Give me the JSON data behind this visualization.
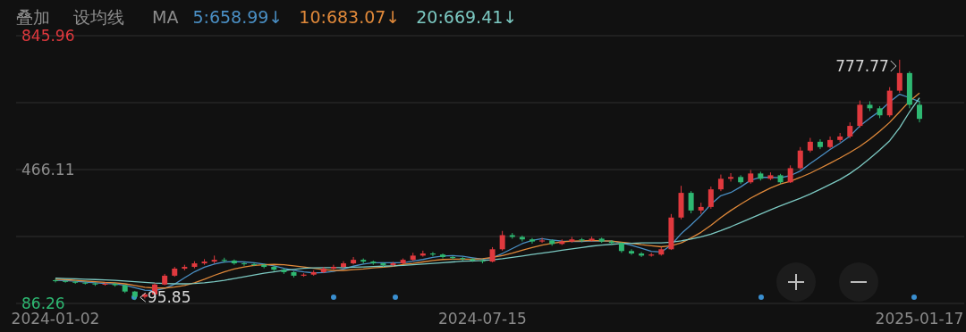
{
  "chart_data": {
    "type": "candlestick",
    "legend_title": "MA",
    "legend": "top left",
    "grid": "y",
    "ylim": [
      86.26,
      845.96
    ],
    "yticks": [
      86.26,
      {
        "value": 276.185,
        "label": null
      },
      466.11,
      {
        "value": 656.035,
        "label": null
      },
      845.96
    ],
    "annotations": [
      "叠加",
      "设均线",
      "777.77",
      "95.85"
    ],
    "categories": [
      "2024-01-02",
      null,
      null,
      null,
      null,
      null,
      null,
      null,
      null,
      null,
      null,
      null,
      null,
      null,
      null,
      null,
      null,
      null,
      null,
      null,
      null,
      null,
      null,
      null,
      null,
      null,
      null,
      null,
      null,
      null,
      null,
      null,
      null,
      null,
      null,
      null,
      null,
      null,
      null,
      null,
      null,
      null,
      null,
      "2024-07-15",
      null,
      null,
      null,
      null,
      null,
      null,
      null,
      null,
      null,
      null,
      null,
      null,
      null,
      null,
      null,
      null,
      null,
      null,
      null,
      null,
      null,
      null,
      null,
      null,
      null,
      null,
      null,
      null,
      null,
      null,
      null,
      null,
      null,
      null,
      null,
      null,
      null,
      null,
      null,
      null,
      null,
      null,
      null,
      "2025-01-17"
    ],
    "ohlc": [
      [
        152,
        156,
        146,
        150
      ],
      [
        150,
        153,
        145,
        148
      ],
      [
        148,
        151,
        142,
        145
      ],
      [
        145,
        149,
        140,
        143
      ],
      [
        143,
        146,
        136,
        140
      ],
      [
        140,
        146,
        137,
        142
      ],
      [
        142,
        145,
        134,
        138
      ],
      [
        138,
        140,
        116,
        120
      ],
      [
        120,
        122,
        95.85,
        105
      ],
      [
        105,
        116,
        100,
        112
      ],
      [
        112,
        144,
        110,
        140
      ],
      [
        140,
        170,
        138,
        165
      ],
      [
        165,
        190,
        162,
        185
      ],
      [
        185,
        196,
        180,
        190
      ],
      [
        190,
        206,
        186,
        200
      ],
      [
        200,
        212,
        196,
        205
      ],
      [
        205,
        222,
        200,
        210
      ],
      [
        210,
        216,
        202,
        208
      ],
      [
        208,
        211,
        196,
        200
      ],
      [
        200,
        204,
        193,
        198
      ],
      [
        198,
        202,
        192,
        196
      ],
      [
        196,
        199,
        186,
        190
      ],
      [
        190,
        193,
        178,
        182
      ],
      [
        182,
        186,
        170,
        175
      ],
      [
        175,
        178,
        160,
        165
      ],
      [
        165,
        172,
        162,
        168
      ],
      [
        168,
        180,
        165,
        175
      ],
      [
        175,
        190,
        172,
        185
      ],
      [
        185,
        196,
        182,
        190
      ],
      [
        190,
        206,
        187,
        200
      ],
      [
        200,
        218,
        197,
        210
      ],
      [
        210,
        214,
        200,
        205
      ],
      [
        205,
        208,
        196,
        200
      ],
      [
        200,
        203,
        190,
        195
      ],
      [
        195,
        204,
        192,
        200
      ],
      [
        200,
        214,
        198,
        210
      ],
      [
        210,
        230,
        207,
        222
      ],
      [
        222,
        236,
        219,
        228
      ],
      [
        228,
        232,
        220,
        225
      ],
      [
        225,
        228,
        214,
        218
      ],
      [
        218,
        221,
        211,
        215
      ],
      [
        215,
        218,
        208,
        212
      ],
      [
        212,
        215,
        204,
        208
      ],
      [
        208,
        212,
        200,
        205
      ],
      [
        205,
        246,
        203,
        240
      ],
      [
        240,
        292,
        236,
        280
      ],
      [
        280,
        286,
        270,
        275
      ],
      [
        275,
        279,
        262,
        268
      ],
      [
        268,
        272,
        256,
        262
      ],
      [
        262,
        272,
        258,
        265
      ],
      [
        265,
        268,
        250,
        255
      ],
      [
        255,
        268,
        252,
        262
      ],
      [
        262,
        275,
        259,
        268
      ],
      [
        268,
        272,
        260,
        265
      ],
      [
        265,
        276,
        262,
        270
      ],
      [
        270,
        273,
        258,
        262
      ],
      [
        262,
        266,
        252,
        258
      ],
      [
        258,
        260,
        230,
        235
      ],
      [
        235,
        240,
        224,
        228
      ],
      [
        228,
        232,
        218,
        222
      ],
      [
        222,
        230,
        219,
        225
      ],
      [
        225,
        246,
        222,
        240
      ],
      [
        240,
        340,
        238,
        330
      ],
      [
        330,
        420,
        325,
        400
      ],
      [
        400,
        405,
        342,
        350
      ],
      [
        350,
        372,
        340,
        360
      ],
      [
        360,
        418,
        355,
        410
      ],
      [
        410,
        452,
        405,
        440
      ],
      [
        440,
        456,
        432,
        445
      ],
      [
        445,
        450,
        425,
        430
      ],
      [
        430,
        465,
        426,
        455
      ],
      [
        455,
        460,
        435,
        440
      ],
      [
        440,
        458,
        436,
        450
      ],
      [
        450,
        454,
        425,
        430
      ],
      [
        430,
        478,
        428,
        470
      ],
      [
        470,
        530,
        466,
        520
      ],
      [
        520,
        556,
        515,
        545
      ],
      [
        545,
        552,
        524,
        530
      ],
      [
        530,
        560,
        526,
        550
      ],
      [
        550,
        570,
        544,
        560
      ],
      [
        560,
        600,
        555,
        590
      ],
      [
        590,
        662,
        585,
        650
      ],
      [
        650,
        660,
        632,
        640
      ],
      [
        640,
        646,
        612,
        620
      ],
      [
        620,
        700,
        615,
        690
      ],
      [
        690,
        777.77,
        684,
        740
      ],
      [
        740,
        745,
        640,
        650
      ],
      [
        650,
        662,
        600,
        610
      ]
    ],
    "series": [
      {
        "name": "5:658.99↓",
        "type": "line",
        "color": "#4a8fc4",
        "values": [
          152,
          151,
          149,
          147,
          145,
          143,
          142,
          138,
          131,
          124,
          123,
          129,
          141,
          159,
          176,
          189,
          198,
          204,
          205,
          204,
          202,
          198,
          193,
          186,
          180,
          176,
          173,
          174,
          177,
          184,
          192,
          198,
          202,
          202,
          202,
          202,
          206,
          211,
          217,
          221,
          222,
          220,
          216,
          212,
          216,
          228,
          242,
          256,
          265,
          270,
          266,
          263,
          262,
          262,
          264,
          263,
          263,
          258,
          251,
          243,
          234,
          232,
          252,
          284,
          309,
          336,
          368,
          392,
          401,
          417,
          436,
          444,
          444,
          443,
          449,
          462,
          483,
          503,
          523,
          541,
          561,
          590,
          612,
          632,
          658,
          680,
          670,
          658.99
        ]
      },
      {
        "name": "10:683.07↓",
        "type": "line",
        "color": "#e0893a",
        "values": [
          155,
          154,
          152,
          150,
          148,
          146,
          145,
          142,
          137,
          132,
          130,
          130,
          133,
          137,
          145,
          155,
          166,
          176,
          184,
          190,
          194,
          196,
          197,
          196,
          193,
          190,
          186,
          182,
          180,
          180,
          182,
          184,
          187,
          189,
          192,
          197,
          200,
          204,
          208,
          211,
          212,
          212,
          212,
          213,
          217,
          222,
          229,
          237,
          245,
          252,
          257,
          261,
          263,
          264,
          265,
          264,
          263,
          260,
          257,
          253,
          250,
          247,
          250,
          258,
          272,
          288,
          308,
          330,
          350,
          368,
          385,
          400,
          414,
          425,
          433,
          444,
          456,
          470,
          484,
          499,
          515,
          532,
          552,
          575,
          600,
          630,
          660,
          683.07
        ]
      },
      {
        "name": "20:669.41↓",
        "type": "line",
        "color": "#7cc9c2",
        "values": [
          158,
          157,
          156,
          155,
          154,
          153,
          152,
          150,
          148,
          146,
          144,
          143,
          142,
          142,
          143,
          145,
          148,
          152,
          157,
          162,
          167,
          172,
          176,
          180,
          183,
          186,
          187,
          188,
          188,
          188,
          189,
          190,
          191,
          192,
          193,
          194,
          196,
          198,
          200,
          202,
          204,
          206,
          207,
          208,
          210,
          213,
          217,
          221,
          225,
          229,
          233,
          237,
          241,
          245,
          249,
          252,
          254,
          256,
          257,
          258,
          258,
          258,
          260,
          264,
          269,
          275,
          283,
          293,
          304,
          316,
          328,
          340,
          352,
          363,
          374,
          385,
          397,
          410,
          424,
          438,
          455,
          475,
          498,
          522,
          548,
          585,
          630,
          669.41
        ]
      }
    ]
  }
}
